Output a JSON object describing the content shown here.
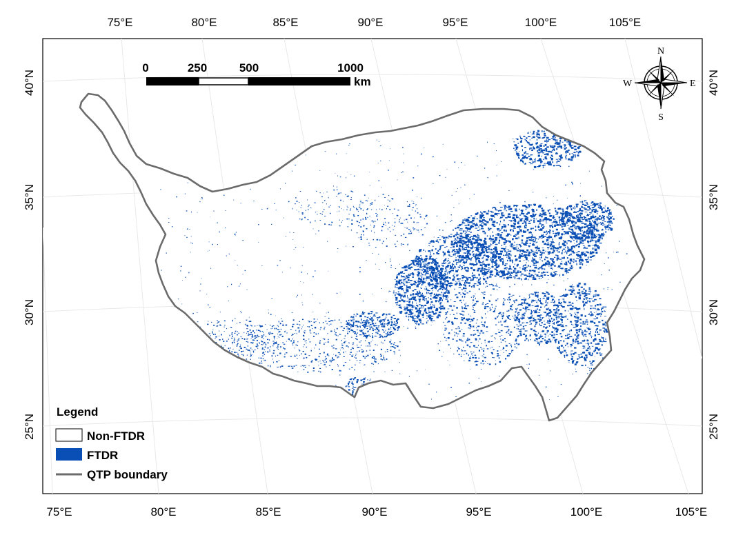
{
  "map": {
    "top_lon_labels": [
      "75°E",
      "80°E",
      "85°E",
      "90°E",
      "95°E",
      "100°E",
      "105°E"
    ],
    "bottom_lon_labels": [
      "75°E",
      "80°E",
      "85°E",
      "90°E",
      "95°E",
      "100°E",
      "105°E"
    ],
    "left_lat_labels": [
      "40°N",
      "35°N",
      "30°N",
      "25°N"
    ],
    "right_lat_labels": [
      "40°N",
      "35°N",
      "30°N",
      "25°N"
    ],
    "scale_bar": {
      "ticks": [
        "0",
        "250",
        "500",
        "1000"
      ],
      "unit": "km"
    },
    "compass": {
      "north": "N",
      "south": "S",
      "east": "E",
      "west": "W"
    },
    "legend": {
      "title": "Legend",
      "items": [
        {
          "label": "Non-FTDR",
          "symbol": "empty-box"
        },
        {
          "label": "FTDR",
          "symbol": "filled-box",
          "color": "#0a4fb5"
        },
        {
          "label": "QTP boundary",
          "symbol": "line",
          "color": "#6b6b6b"
        }
      ]
    },
    "colors": {
      "ftdr": "#0a4fb5",
      "boundary": "#6b6b6b",
      "graticule": "#e8e8e8",
      "frame": "#000000"
    }
  }
}
